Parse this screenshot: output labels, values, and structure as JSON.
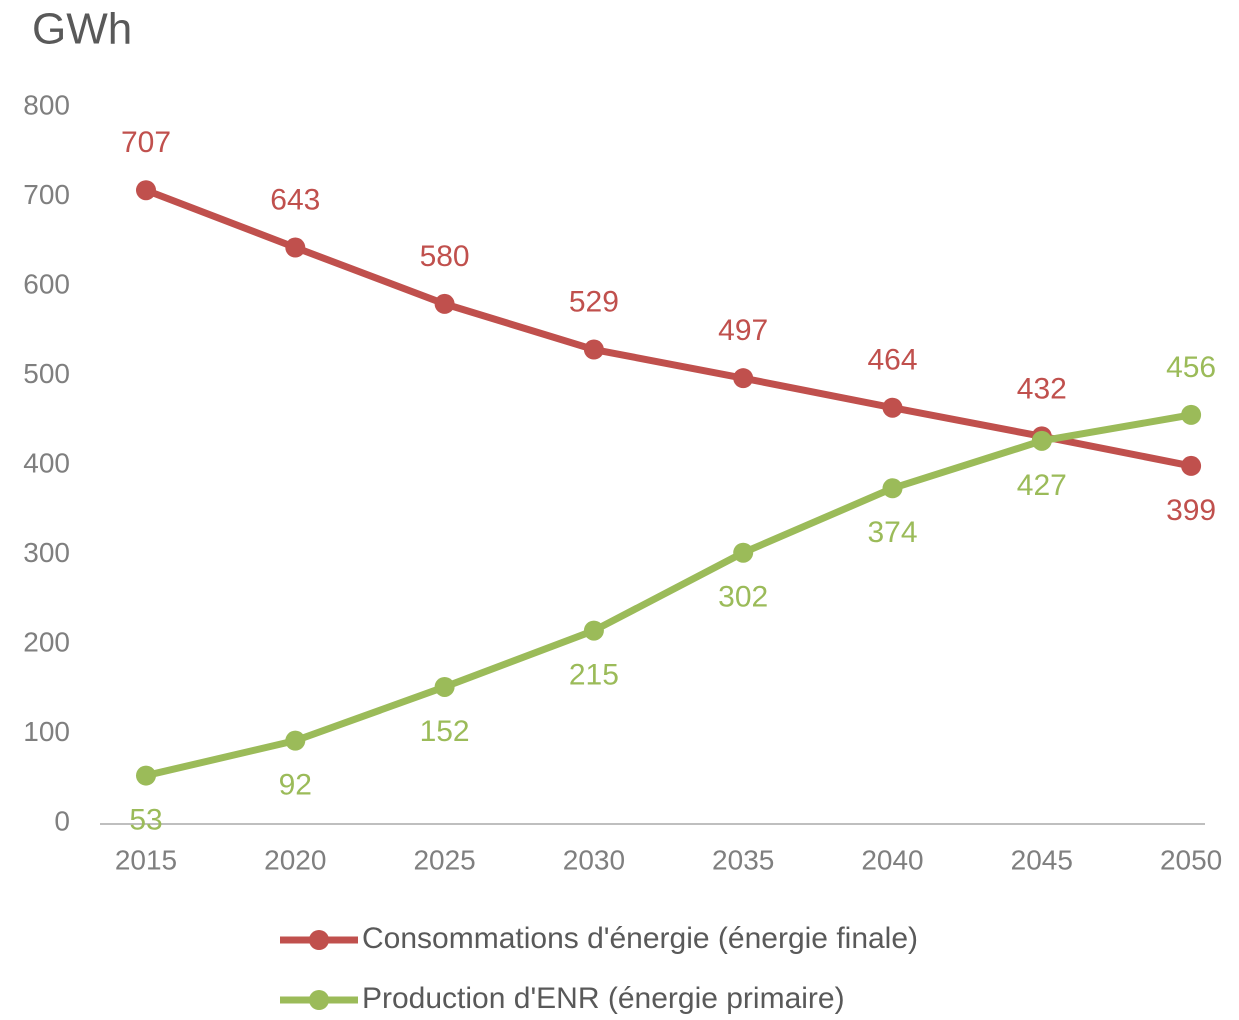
{
  "chart_data": {
    "type": "line",
    "y_axis_label": "GWh",
    "categories": [
      "2015",
      "2020",
      "2025",
      "2030",
      "2035",
      "2040",
      "2045",
      "2050"
    ],
    "series": [
      {
        "name": "Consommations d'énergie (énergie finale)",
        "color": "#c0504d",
        "values": [
          707,
          643,
          580,
          529,
          497,
          464,
          432,
          399
        ]
      },
      {
        "name": "Production d'ENR (énergie primaire)",
        "color": "#9bbb59",
        "values": [
          53,
          92,
          152,
          215,
          302,
          374,
          427,
          456
        ]
      }
    ],
    "ylim": [
      0,
      800
    ],
    "yticks": [
      0,
      100,
      200,
      300,
      400,
      500,
      600,
      700,
      800
    ],
    "grid": false,
    "legend": "bottom"
  }
}
